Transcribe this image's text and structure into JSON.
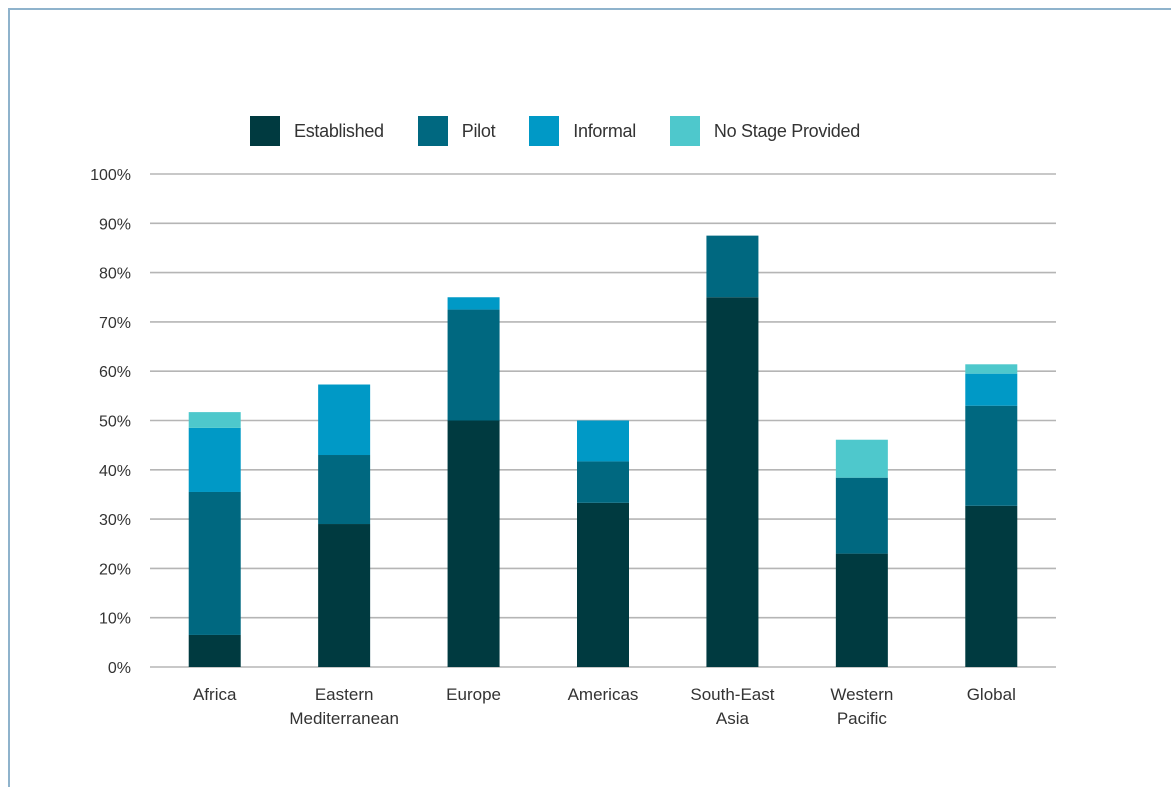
{
  "chart_data": {
    "type": "bar",
    "stacked": true,
    "categories": [
      "Africa",
      "Eastern Mediterranean",
      "Europe",
      "Americas",
      "South-East Asia",
      "Western Pacific",
      "Global"
    ],
    "category_lines": [
      [
        "Africa"
      ],
      [
        "Eastern",
        "Mediterranean"
      ],
      [
        "Europe"
      ],
      [
        "Americas"
      ],
      [
        "South-East",
        "Asia"
      ],
      [
        "Western",
        "Pacific"
      ],
      [
        "Global"
      ]
    ],
    "series": [
      {
        "name": "Established",
        "color": "#003a40",
        "values": [
          6.5,
          29,
          50,
          33.3,
          75,
          23,
          32.7
        ]
      },
      {
        "name": "Pilot",
        "color": "#006880",
        "values": [
          29,
          14,
          22.5,
          8.4,
          12.5,
          15.4,
          20.3
        ]
      },
      {
        "name": "Informal",
        "color": "#0099c6",
        "values": [
          13,
          14.3,
          2.5,
          8.3,
          0,
          0,
          6.5
        ]
      },
      {
        "name": "No Stage Provided",
        "color": "#4ec8cc",
        "values": [
          3.2,
          0,
          0,
          0,
          0,
          7.7,
          1.9
        ]
      }
    ],
    "ylim": [
      0,
      100
    ],
    "yticks": [
      "0%",
      "10%",
      "20%",
      "30%",
      "40%",
      "50%",
      "60%",
      "70%",
      "80%",
      "90%",
      "100%"
    ],
    "grid": true,
    "legend_position": "top",
    "title": "",
    "xlabel": "",
    "ylabel": ""
  }
}
